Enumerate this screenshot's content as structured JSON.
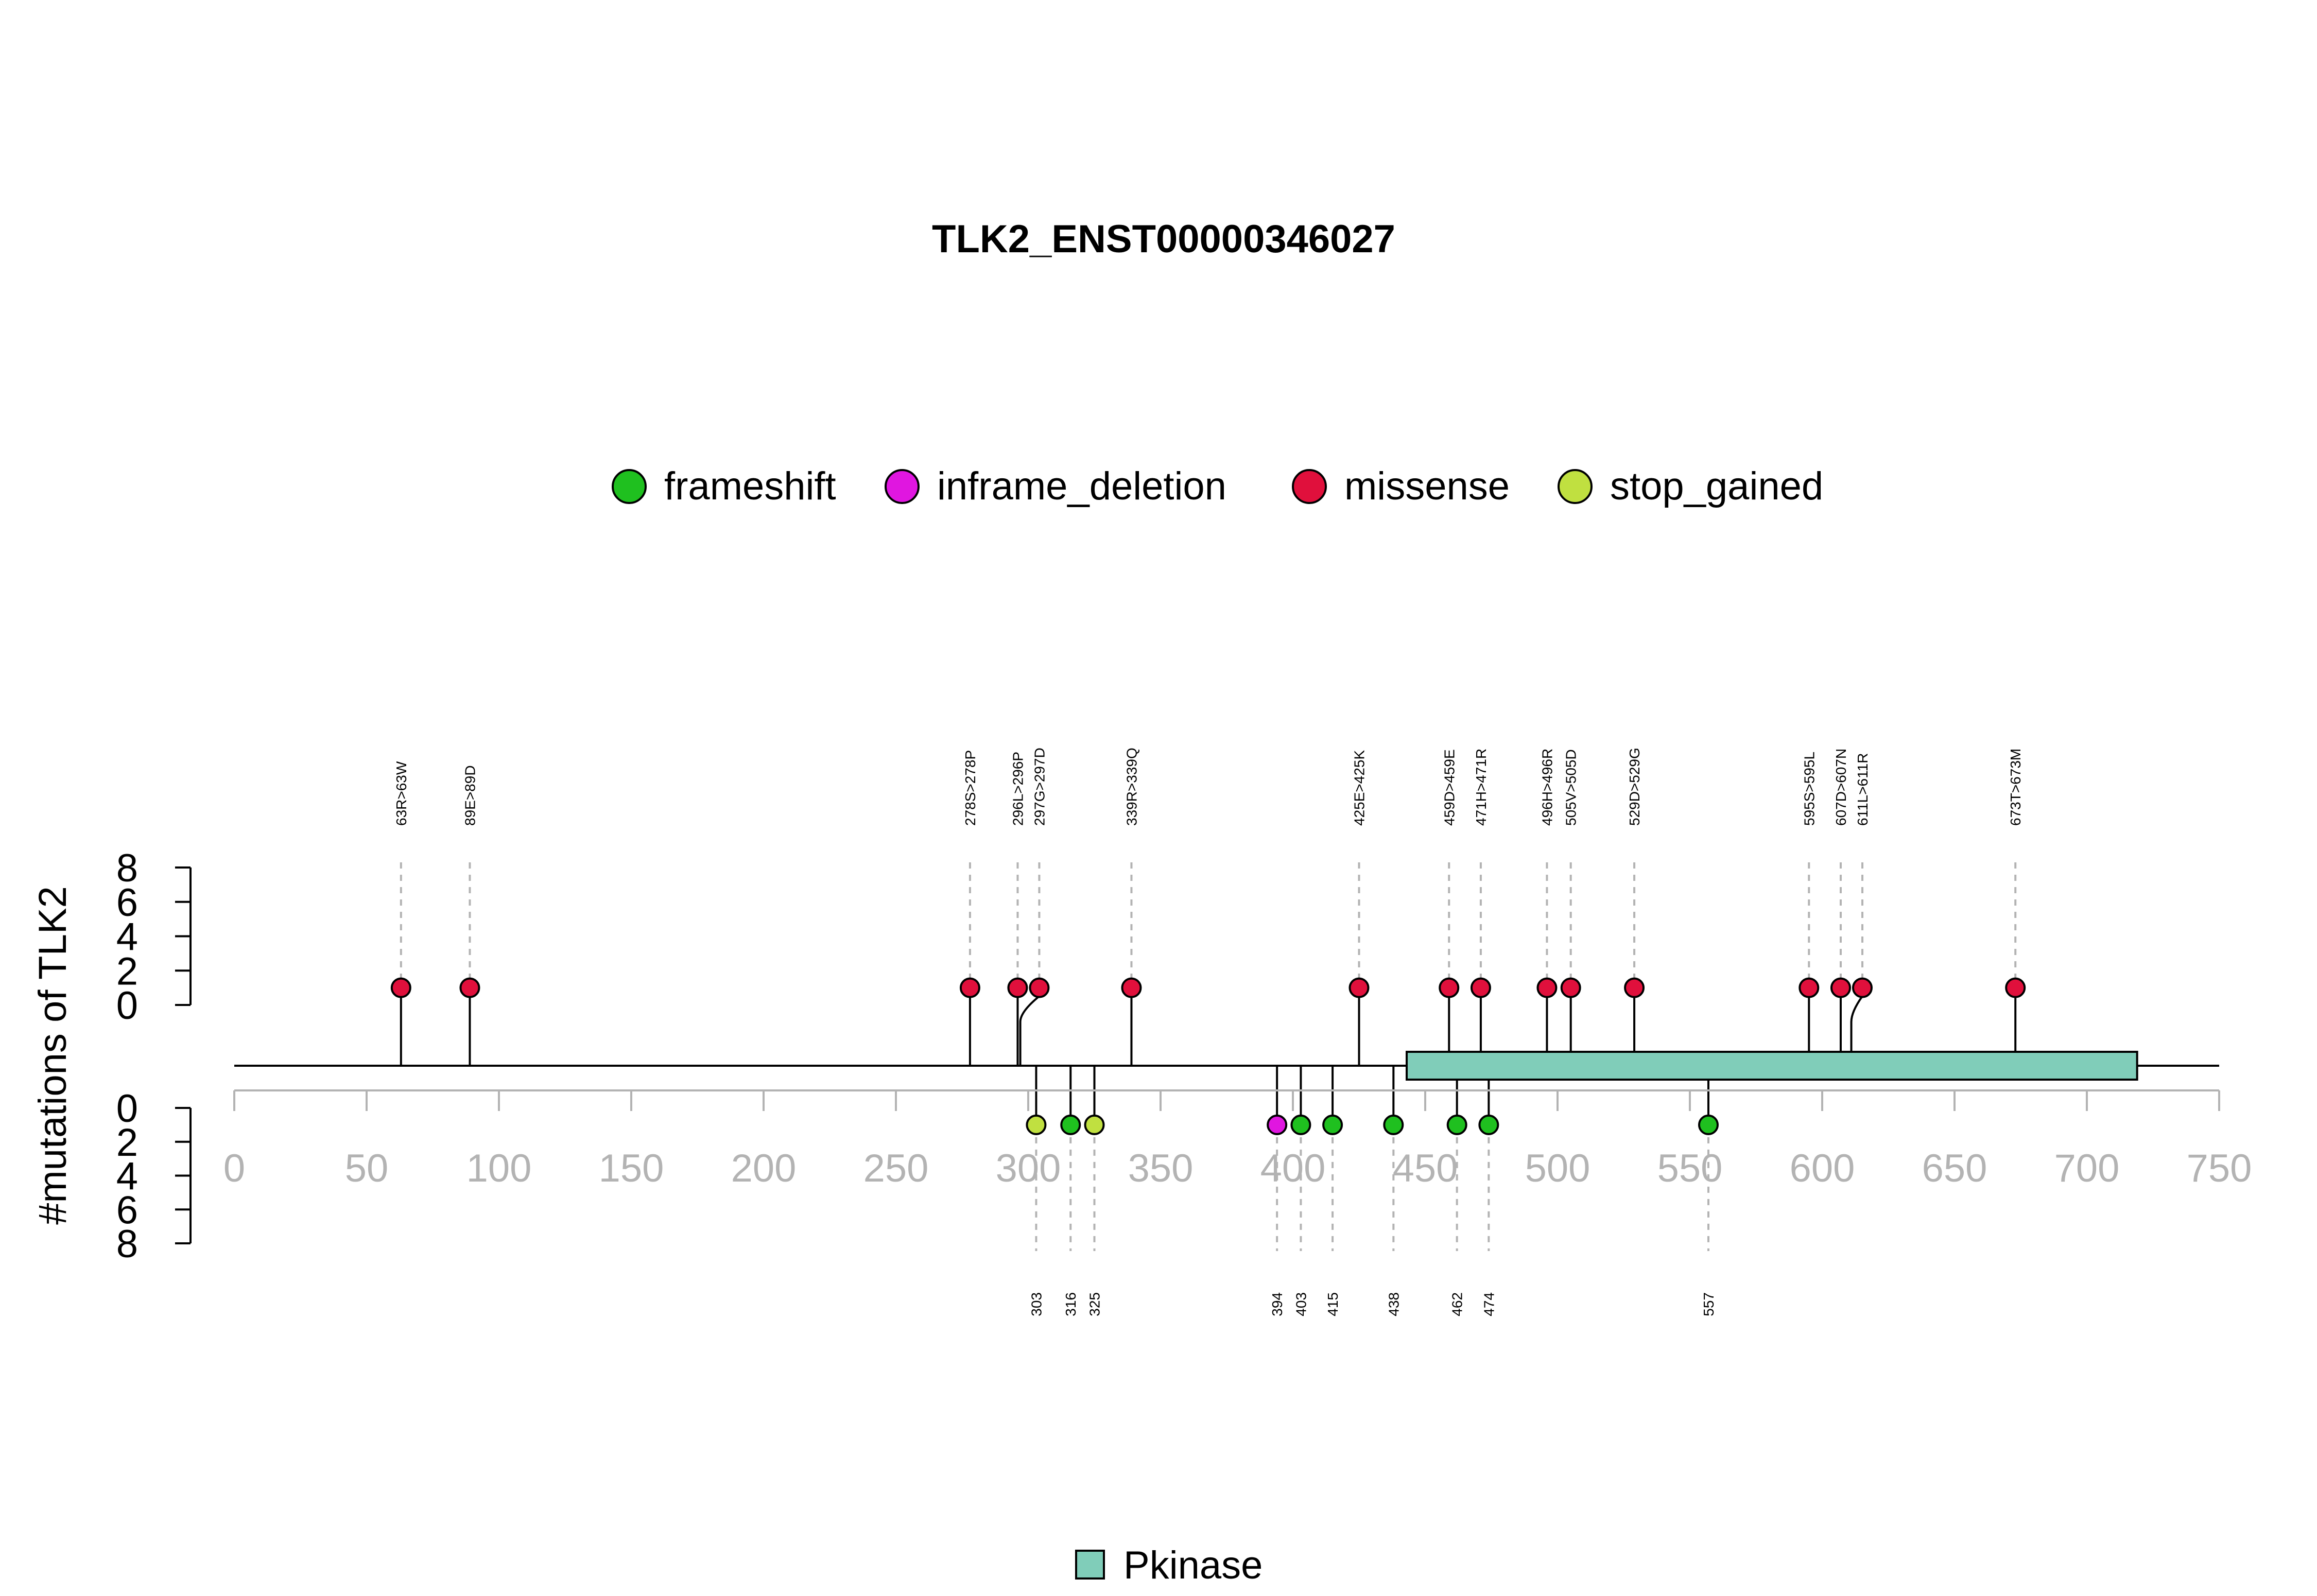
{
  "chart_data": {
    "type": "lollipop",
    "title": "TLK2_ENST00000346027",
    "ylabel": "#mutations of TLK2",
    "xlim": [
      0,
      750
    ],
    "x_ticks": [
      0,
      50,
      100,
      150,
      200,
      250,
      300,
      350,
      400,
      450,
      500,
      550,
      600,
      650,
      700,
      750
    ],
    "y_ticks": [
      0,
      2,
      4,
      6,
      8
    ],
    "ylim": [
      0,
      8
    ],
    "protein_length": 750,
    "legend": [
      {
        "name": "frameshift",
        "color": "#1fc01f"
      },
      {
        "name": "inframe_deletion",
        "color": "#e016e0"
      },
      {
        "name": "missense",
        "color": "#e0103c"
      },
      {
        "name": "stop_gained",
        "color": "#c0e040"
      }
    ],
    "top_mutations": [
      {
        "label": "63R>63W",
        "pos": 63,
        "count": 1,
        "type": "missense"
      },
      {
        "label": "89E>89D",
        "pos": 89,
        "count": 1,
        "type": "missense"
      },
      {
        "label": "278S>278P",
        "pos": 278,
        "count": 1,
        "type": "missense"
      },
      {
        "label": "296L>296P",
        "pos": 296,
        "count": 1,
        "type": "missense"
      },
      {
        "label": "297G>297D",
        "pos": 297,
        "count": 1,
        "type": "missense"
      },
      {
        "label": "339R>339Q",
        "pos": 339,
        "count": 1,
        "type": "missense"
      },
      {
        "label": "425E>425K",
        "pos": 425,
        "count": 1,
        "type": "missense"
      },
      {
        "label": "459D>459E",
        "pos": 459,
        "count": 1,
        "type": "missense"
      },
      {
        "label": "471H>471R",
        "pos": 471,
        "count": 1,
        "type": "missense"
      },
      {
        "label": "496H>496R",
        "pos": 496,
        "count": 1,
        "type": "missense"
      },
      {
        "label": "505V>505D",
        "pos": 505,
        "count": 1,
        "type": "missense"
      },
      {
        "label": "529D>529G",
        "pos": 529,
        "count": 1,
        "type": "missense"
      },
      {
        "label": "595S>595L",
        "pos": 595,
        "count": 1,
        "type": "missense"
      },
      {
        "label": "607D>607N",
        "pos": 607,
        "count": 1,
        "type": "missense"
      },
      {
        "label": "611L>611R",
        "pos": 611,
        "count": 1,
        "type": "missense"
      },
      {
        "label": "673T>673M",
        "pos": 673,
        "count": 1,
        "type": "missense"
      }
    ],
    "bottom_mutations": [
      {
        "label": "303",
        "pos": 303,
        "count": 1,
        "type": "stop_gained"
      },
      {
        "label": "316",
        "pos": 316,
        "count": 1,
        "type": "frameshift"
      },
      {
        "label": "325",
        "pos": 325,
        "count": 1,
        "type": "stop_gained"
      },
      {
        "label": "394",
        "pos": 394,
        "count": 1,
        "type": "inframe_deletion"
      },
      {
        "label": "403",
        "pos": 403,
        "count": 1,
        "type": "frameshift"
      },
      {
        "label": "415",
        "pos": 415,
        "count": 1,
        "type": "frameshift"
      },
      {
        "label": "438",
        "pos": 438,
        "count": 1,
        "type": "frameshift"
      },
      {
        "label": "462",
        "pos": 462,
        "count": 1,
        "type": "frameshift"
      },
      {
        "label": "474",
        "pos": 474,
        "count": 1,
        "type": "frameshift"
      },
      {
        "label": "557",
        "pos": 557,
        "count": 1,
        "type": "frameshift"
      }
    ],
    "domains": [
      {
        "name": "Pkinase",
        "start": 443,
        "end": 719,
        "color": "#80cdb9"
      }
    ]
  }
}
